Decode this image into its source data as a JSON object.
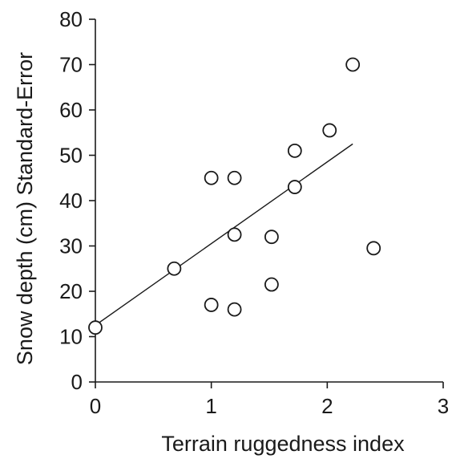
{
  "chart_data": {
    "type": "scatter",
    "title": "",
    "xlabel": "Terrain ruggedness index",
    "ylabel": "Snow depth (cm) Standard-Error",
    "xlim": [
      0,
      3
    ],
    "ylim": [
      0,
      80
    ],
    "xticks": [
      "0",
      "1",
      "2",
      "3"
    ],
    "yticks": [
      "0",
      "10",
      "20",
      "30",
      "40",
      "50",
      "60",
      "70",
      "80"
    ],
    "grid": false,
    "legend": "none",
    "points": [
      {
        "x": 0.0,
        "y": 12
      },
      {
        "x": 0.68,
        "y": 25
      },
      {
        "x": 1.0,
        "y": 45
      },
      {
        "x": 1.0,
        "y": 17
      },
      {
        "x": 1.2,
        "y": 45
      },
      {
        "x": 1.2,
        "y": 32.5
      },
      {
        "x": 1.2,
        "y": 16
      },
      {
        "x": 1.52,
        "y": 32
      },
      {
        "x": 1.52,
        "y": 21.5
      },
      {
        "x": 1.72,
        "y": 51
      },
      {
        "x": 1.72,
        "y": 43
      },
      {
        "x": 2.02,
        "y": 55.5
      },
      {
        "x": 2.22,
        "y": 70
      },
      {
        "x": 2.4,
        "y": 29.5
      }
    ],
    "trendline": {
      "x": [
        0,
        2.22
      ],
      "y": [
        12.5,
        52.5
      ]
    },
    "marker": "open-circle",
    "colors": {
      "marker": "#1a1a1a",
      "line": "#1a1a1a",
      "axis": "#1a1a1a"
    }
  }
}
